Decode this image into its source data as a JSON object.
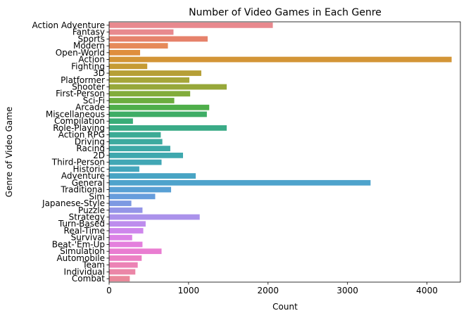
{
  "chart_data": {
    "type": "bar",
    "orientation": "horizontal",
    "title": "Number of Video Games in Each Genre",
    "xlabel": "Count",
    "ylabel": "Genre of Video Game",
    "xlim": [
      0,
      4420
    ],
    "xticks": [
      0,
      1000,
      2000,
      3000,
      4000
    ],
    "grid": false,
    "legend": "none",
    "categories": [
      "Action Adventure",
      "Fantasy",
      "Sports",
      "Modern",
      "Open-World",
      "Action",
      "Fighting",
      "3D",
      "Platformer",
      "Shooter",
      "First-Person",
      "Sci-Fi",
      "Arcade",
      "Miscellaneous",
      "Compilation",
      "Role-Playing",
      "Action RPG",
      "Driving",
      "Racing",
      "2D",
      "Third-Person",
      "Historic",
      "Adventure",
      "General",
      "Traditional",
      "Sim",
      "Japanese-Style",
      "Puzzle",
      "Strategy",
      "Turn-Based",
      "Real-Time",
      "Survival",
      "Beat-'Em-Up",
      "Simulation",
      "Automobile",
      "Team",
      "Individual",
      "Combat"
    ],
    "values": [
      2060,
      810,
      1240,
      740,
      390,
      4310,
      480,
      1160,
      1010,
      1480,
      1020,
      820,
      1260,
      1230,
      300,
      1480,
      650,
      670,
      770,
      930,
      660,
      380,
      1090,
      3290,
      780,
      580,
      280,
      420,
      1140,
      460,
      430,
      290,
      420,
      660,
      410,
      360,
      330,
      260
    ],
    "colors": [
      "#e8898e",
      "#e8898e",
      "#e6826b",
      "#e68a5a",
      "#df8e3d",
      "#d39537",
      "#c69b35",
      "#b69f36",
      "#a6a639",
      "#97a83a",
      "#82ac3b",
      "#6cad3f",
      "#4fae4a",
      "#3ead65",
      "#39ad78",
      "#3aab87",
      "#3cab95",
      "#3daa9f",
      "#3ea9a7",
      "#3fa8ae",
      "#41a7b5",
      "#44a6bc",
      "#48a4c4",
      "#4ea3cc",
      "#58a0d4",
      "#679ddc",
      "#7d99e2",
      "#9495e7",
      "#ab92eb",
      "#bd8ced",
      "#ce86ec",
      "#db82e6",
      "#e47fdd",
      "#e97dd1",
      "#ec80c3",
      "#ec83b5",
      "#eb86a7",
      "#ea889a"
    ]
  }
}
